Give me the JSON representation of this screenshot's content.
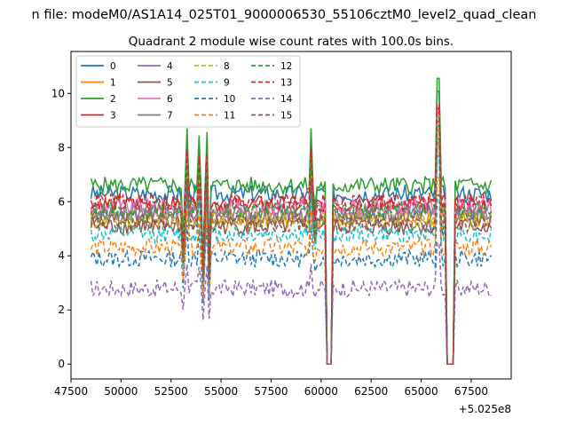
{
  "chart_data": {
    "type": "line",
    "suptitle": "n file: modeM0/AS1A14_025T01_9000006530_55106cztM0_level2_quad_clean",
    "title": "Quadrant 2 module wise count rates with 100.0s bins.",
    "xlabel": "",
    "ylabel": "",
    "xlim": [
      47500,
      69500
    ],
    "ylim": [
      -0.55,
      11.55
    ],
    "x_offset_label": "+5.025e8",
    "x_ticks": [
      47500,
      50000,
      52500,
      55000,
      57500,
      60000,
      62500,
      65000,
      67500
    ],
    "x_tick_labels": [
      "47500",
      "50000",
      "52500",
      "55000",
      "57500",
      "60000",
      "62500",
      "65000",
      "67500"
    ],
    "y_ticks": [
      0,
      2,
      4,
      6,
      8,
      10
    ],
    "y_tick_labels": [
      "0",
      "2",
      "4",
      "6",
      "8",
      "10"
    ],
    "x_range": [
      48500,
      68500
    ],
    "bin_seconds": 100,
    "gaps": [
      [
        60250,
        60550
      ],
      [
        66250,
        66650
      ]
    ],
    "spikes": [
      {
        "x": 53300,
        "mult": 1.32
      },
      {
        "x": 53900,
        "mult": 1.28
      },
      {
        "x": 54300,
        "mult": 1.3
      },
      {
        "x": 59500,
        "mult": 1.32
      },
      {
        "x": 65850,
        "mult": 1.6
      }
    ],
    "dips": [
      {
        "x": 53100,
        "mult": 0.72
      },
      {
        "x": 54100,
        "mult": 0.58
      },
      {
        "x": 54400,
        "mult": 0.6
      },
      {
        "x": 59700,
        "mult": 0.88
      }
    ],
    "legend_position": "upper-left",
    "series": [
      {
        "name": "0",
        "color": "#1f77b4",
        "dash": "solid",
        "base": 6.3
      },
      {
        "name": "1",
        "color": "#ff7f0e",
        "dash": "solid",
        "base": 5.4
      },
      {
        "name": "2",
        "color": "#2ca02c",
        "dash": "solid",
        "base": 6.6
      },
      {
        "name": "3",
        "color": "#d62728",
        "dash": "solid",
        "base": 5.9
      },
      {
        "name": "4",
        "color": "#9467bd",
        "dash": "solid",
        "base": 5.6
      },
      {
        "name": "5",
        "color": "#8c564b",
        "dash": "solid",
        "base": 5.1
      },
      {
        "name": "6",
        "color": "#e377c2",
        "dash": "solid",
        "base": 5.8
      },
      {
        "name": "7",
        "color": "#7f7f7f",
        "dash": "solid",
        "base": 5.5
      },
      {
        "name": "8",
        "color": "#bcbd22",
        "dash": "dashed",
        "base": 5.3
      },
      {
        "name": "9",
        "color": "#17becf",
        "dash": "dashed",
        "base": 4.8
      },
      {
        "name": "10",
        "color": "#1f77b4",
        "dash": "dashed",
        "base": 3.9
      },
      {
        "name": "11",
        "color": "#ff7f0e",
        "dash": "dashed",
        "base": 4.3
      },
      {
        "name": "12",
        "color": "#2ca02c",
        "dash": "dashed",
        "base": 5.7
      },
      {
        "name": "13",
        "color": "#d62728",
        "dash": "dashed",
        "base": 6.0
      },
      {
        "name": "14",
        "color": "#9467bd",
        "dash": "dashed",
        "base": 2.8
      },
      {
        "name": "15",
        "color": "#8c564b",
        "dash": "dashed",
        "base": 5.2
      }
    ]
  }
}
